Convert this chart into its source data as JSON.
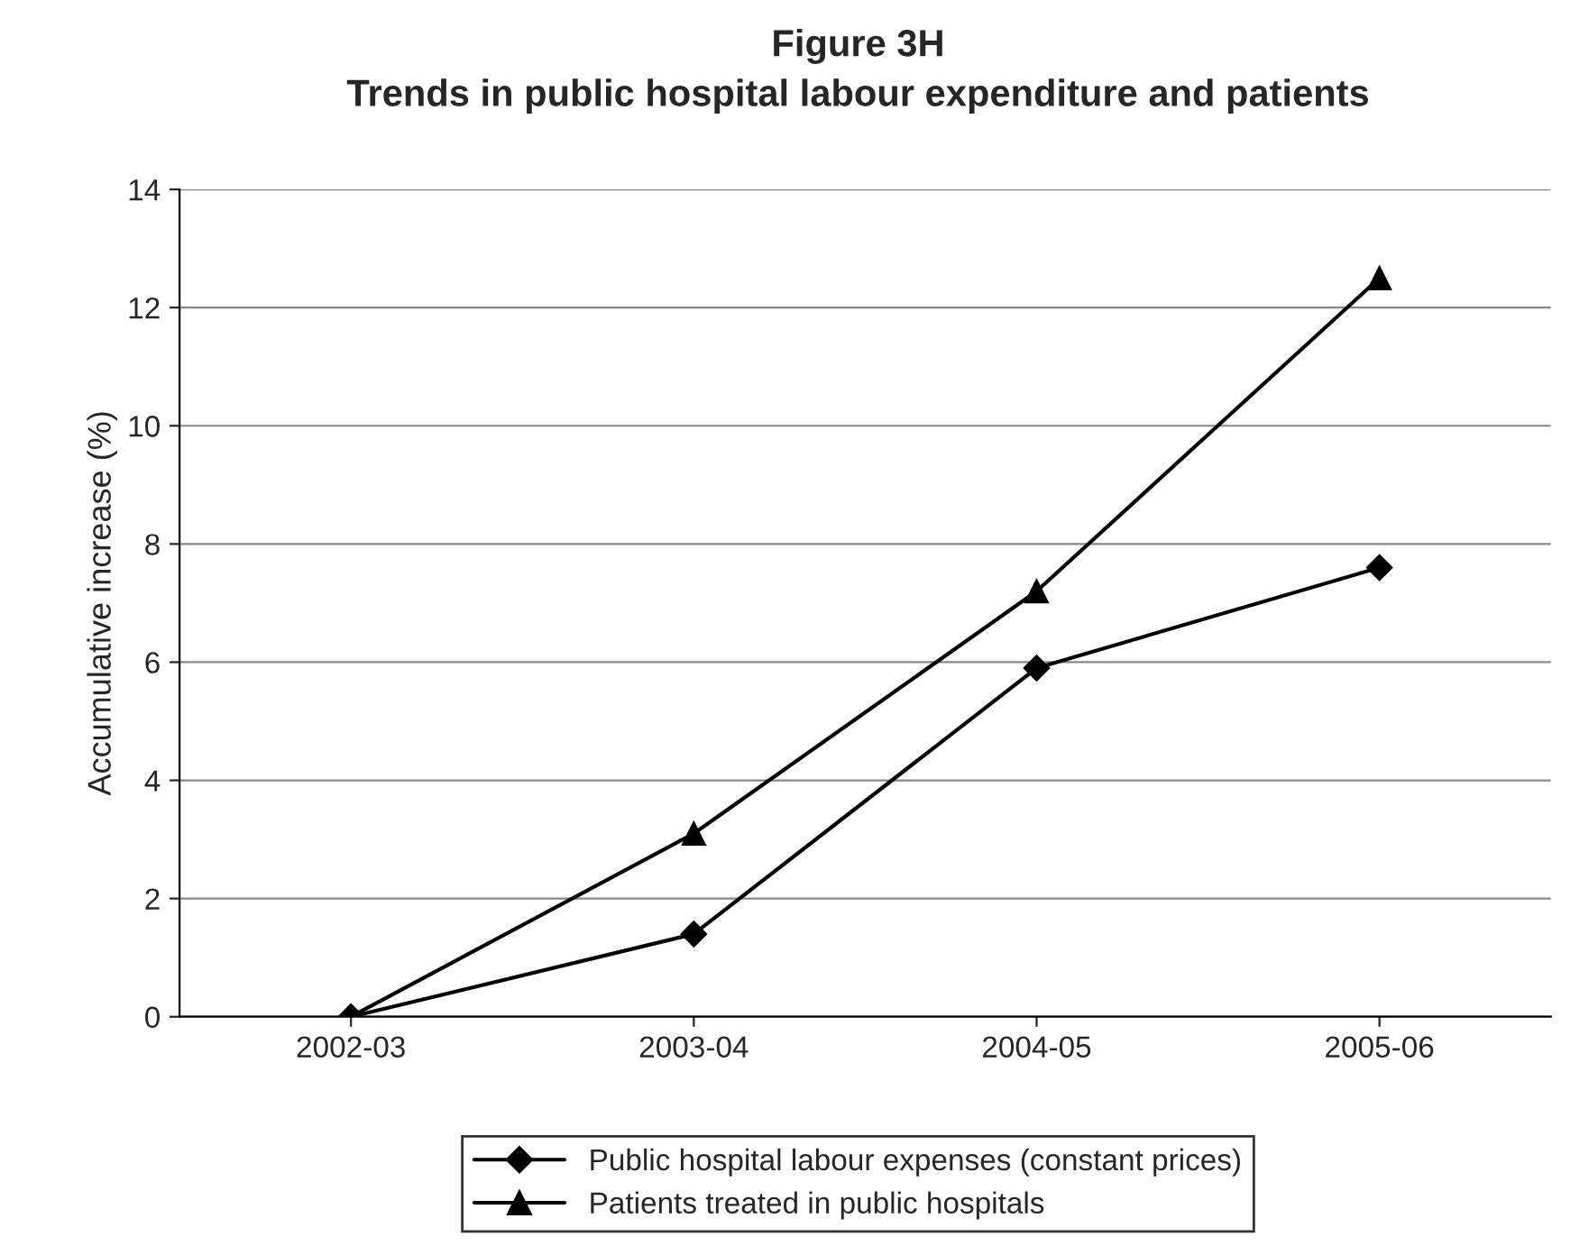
{
  "chart_data": {
    "type": "line",
    "title": "Figure 3H",
    "subtitle": "Trends in public hospital labour expenditure and patients",
    "ylabel": "Accumulative increase (%)",
    "categories": [
      "2002-03",
      "2003-04",
      "2004-05",
      "2005-06"
    ],
    "series": [
      {
        "name": "Public hospital labour expenses (constant prices)",
        "color": "#000000",
        "marker": "diamond",
        "values": [
          0,
          1.4,
          5.9,
          7.6
        ]
      },
      {
        "name": "Patients treated in public hospitals",
        "color": "#000000",
        "marker": "triangle",
        "values": [
          0,
          3.1,
          7.2,
          12.5
        ]
      }
    ],
    "ylim": [
      0,
      14
    ],
    "yticks": [
      0,
      2,
      4,
      6,
      8,
      10,
      12,
      14
    ],
    "grid": "y",
    "legend": "bottom",
    "line_style": "solid"
  }
}
